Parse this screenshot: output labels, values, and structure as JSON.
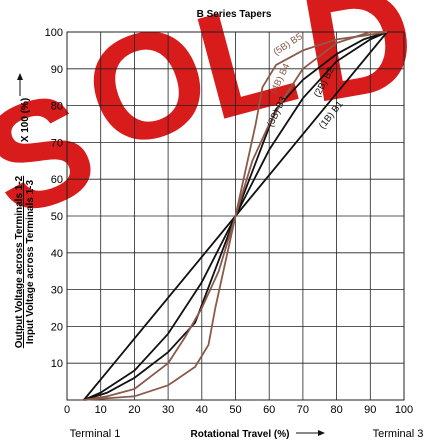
{
  "chart_data": {
    "type": "line",
    "title": "B Series Tapers",
    "xlabel": "Rotational Travel (%)",
    "ylabel_line1": "Output Voltage across Terminals 1-2",
    "ylabel_line2": "Input Voltage across Terminals 1-3",
    "ylabel_suffix": "X 100 (%)",
    "x_start_label": "Terminal 1",
    "x_end_label": "Terminal 3",
    "xlim": [
      0,
      100
    ],
    "ylim": [
      0,
      100
    ],
    "xticks": [
      0,
      10,
      20,
      30,
      40,
      50,
      60,
      70,
      80,
      90,
      100
    ],
    "yticks": [
      10,
      20,
      30,
      40,
      50,
      60,
      70,
      80,
      90,
      100
    ],
    "grid": true,
    "series": [
      {
        "name": "(1B) B1",
        "color": "#111111",
        "points": [
          [
            5,
            0
          ],
          [
            50,
            50
          ],
          [
            95,
            100
          ]
        ]
      },
      {
        "name": "(2B) B2",
        "color": "#111111",
        "points": [
          [
            5,
            0
          ],
          [
            12,
            2
          ],
          [
            20,
            6
          ],
          [
            30,
            13
          ],
          [
            38,
            21
          ],
          [
            50,
            50
          ],
          [
            62,
            79
          ],
          [
            70,
            87
          ],
          [
            80,
            94
          ],
          [
            88,
            98
          ],
          [
            95,
            100
          ]
        ]
      },
      {
        "name": "(3B) B3",
        "color": "#111111",
        "points": [
          [
            5,
            0
          ],
          [
            10,
            2
          ],
          [
            20,
            8
          ],
          [
            30,
            18
          ],
          [
            40,
            32
          ],
          [
            50,
            50
          ],
          [
            60,
            68
          ],
          [
            70,
            82
          ],
          [
            80,
            92
          ],
          [
            90,
            98
          ],
          [
            95,
            100
          ]
        ]
      },
      {
        "name": "(4B) B4",
        "color": "#8a5a4a",
        "points": [
          [
            5,
            0
          ],
          [
            12,
            1
          ],
          [
            20,
            3
          ],
          [
            30,
            10
          ],
          [
            35,
            17
          ],
          [
            40,
            25
          ],
          [
            45,
            35
          ],
          [
            50,
            50
          ],
          [
            55,
            65
          ],
          [
            60,
            75
          ],
          [
            65,
            83
          ],
          [
            70,
            90
          ],
          [
            80,
            97
          ],
          [
            90,
            100
          ],
          [
            95,
            100
          ]
        ]
      },
      {
        "name": "(5B) B5",
        "color": "#8a5a4a",
        "points": [
          [
            5,
            0
          ],
          [
            20,
            1
          ],
          [
            30,
            4
          ],
          [
            38,
            9
          ],
          [
            42,
            15
          ],
          [
            44,
            25
          ],
          [
            50,
            50
          ],
          [
            56,
            75
          ],
          [
            58,
            85
          ],
          [
            62,
            91
          ],
          [
            70,
            95
          ],
          [
            80,
            98
          ],
          [
            88,
            99
          ],
          [
            95,
            100
          ]
        ]
      }
    ],
    "series_labels": [
      {
        "text": "(1B) B1",
        "at": [
          79,
          77
        ],
        "angle": -52,
        "color": "#111111"
      },
      {
        "text": "(2B) B2",
        "at": [
          77,
          86
        ],
        "angle": -62,
        "color": "#111111"
      },
      {
        "text": "(3B) B3",
        "at": [
          63,
          78
        ],
        "angle": -64,
        "color": "#111111"
      },
      {
        "text": "(4B) B4",
        "at": [
          64,
          87
        ],
        "angle": -64,
        "color": "#8a5a4a"
      },
      {
        "text": "(5B) B5",
        "at": [
          66,
          96
        ],
        "angle": -33,
        "color": "#8a5a4a"
      }
    ]
  },
  "watermark": {
    "text": "SOLD",
    "color": "#d81b1b"
  }
}
